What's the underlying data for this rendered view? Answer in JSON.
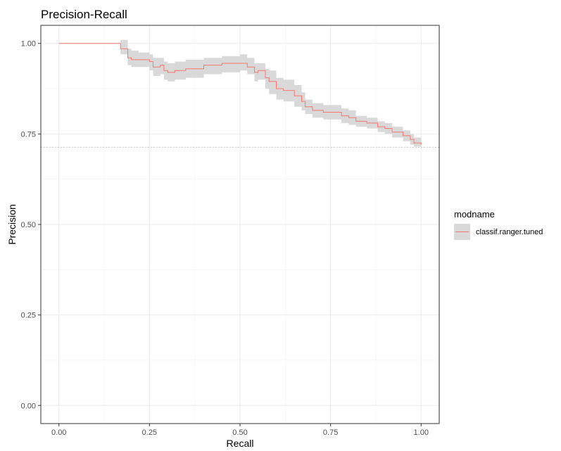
{
  "chart_data": {
    "type": "line",
    "title": "Precision-Recall",
    "xlabel": "Recall",
    "ylabel": "Precision",
    "xlim": [
      -0.05,
      1.05
    ],
    "ylim": [
      -0.05,
      1.05
    ],
    "x_ticks": [
      0,
      0.25,
      0.5,
      0.75,
      1
    ],
    "x_tick_labels": [
      "0.00",
      "0.25",
      "0.50",
      "0.75",
      "1.00"
    ],
    "y_ticks": [
      0,
      0.25,
      0.5,
      0.75,
      1
    ],
    "y_tick_labels": [
      "0.00",
      "0.25",
      "0.50",
      "0.75",
      "1.00"
    ],
    "grid": true,
    "legend": {
      "title": "modname",
      "position": "right"
    },
    "baseline": 0.713,
    "colors": {
      "line": "#F8766D",
      "ribbon": "#d9d9d9",
      "baseline": "#b3b3b3"
    },
    "series": [
      {
        "name": "classif.ranger.tuned",
        "x": [
          0,
          0.16,
          0.17,
          0.19,
          0.19,
          0.2,
          0.22,
          0.25,
          0.26,
          0.28,
          0.29,
          0.3,
          0.32,
          0.35,
          0.4,
          0.45,
          0.5,
          0.52,
          0.54,
          0.55,
          0.57,
          0.58,
          0.6,
          0.62,
          0.65,
          0.67,
          0.68,
          0.7,
          0.73,
          0.75,
          0.78,
          0.8,
          0.82,
          0.85,
          0.88,
          0.9,
          0.92,
          0.95,
          0.97,
          0.98,
          1.0
        ],
        "y": [
          1.0,
          1.0,
          0.985,
          0.985,
          0.96,
          0.955,
          0.955,
          0.95,
          0.935,
          0.94,
          0.925,
          0.92,
          0.925,
          0.93,
          0.94,
          0.945,
          0.945,
          0.935,
          0.92,
          0.925,
          0.905,
          0.895,
          0.875,
          0.87,
          0.855,
          0.84,
          0.825,
          0.815,
          0.81,
          0.81,
          0.8,
          0.795,
          0.785,
          0.78,
          0.77,
          0.765,
          0.755,
          0.745,
          0.735,
          0.725,
          0.72
        ],
        "lower": [
          1.0,
          1.0,
          0.97,
          0.97,
          0.94,
          0.935,
          0.935,
          0.925,
          0.91,
          0.915,
          0.9,
          0.895,
          0.9,
          0.905,
          0.915,
          0.92,
          0.925,
          0.915,
          0.895,
          0.9,
          0.875,
          0.86,
          0.845,
          0.84,
          0.825,
          0.815,
          0.805,
          0.795,
          0.79,
          0.79,
          0.78,
          0.775,
          0.77,
          0.765,
          0.755,
          0.75,
          0.74,
          0.73,
          0.72,
          0.715,
          0.71
        ],
        "upper": [
          1.0,
          1.0,
          1.01,
          1.01,
          0.985,
          0.98,
          0.975,
          0.97,
          0.96,
          0.96,
          0.95,
          0.945,
          0.95,
          0.955,
          0.96,
          0.965,
          0.97,
          0.96,
          0.945,
          0.945,
          0.93,
          0.925,
          0.905,
          0.9,
          0.885,
          0.865,
          0.845,
          0.835,
          0.83,
          0.83,
          0.82,
          0.815,
          0.8,
          0.795,
          0.785,
          0.78,
          0.77,
          0.76,
          0.75,
          0.74,
          0.73
        ]
      }
    ]
  }
}
